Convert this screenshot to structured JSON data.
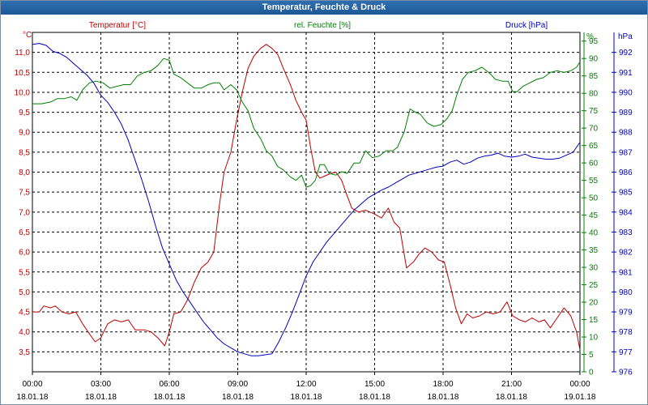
{
  "window_title": "Temperatur, Feuchte & Druck",
  "colors": {
    "temperature": "#c00000",
    "humidity": "#008000",
    "pressure": "#0000c0",
    "grid": "#000000",
    "titlebar": "#1f5f9f"
  },
  "chart_data": {
    "type": "line",
    "title": "Temperatur, Feuchte & Druck",
    "x_ticks": [
      {
        "hours": 0,
        "time": "00:00",
        "date": "18.01.18"
      },
      {
        "hours": 3,
        "time": "03:00",
        "date": "18.01.18"
      },
      {
        "hours": 6,
        "time": "06:00",
        "date": "18.01.18"
      },
      {
        "hours": 9,
        "time": "09:00",
        "date": "18.01.18"
      },
      {
        "hours": 12,
        "time": "12:00",
        "date": "18.01.18"
      },
      {
        "hours": 15,
        "time": "15:00",
        "date": "18.01.18"
      },
      {
        "hours": 18,
        "time": "18:00",
        "date": "18.01.18"
      },
      {
        "hours": 21,
        "time": "21:00",
        "date": "18.01.18"
      },
      {
        "hours": 24,
        "time": "00:00",
        "date": "19.01.18"
      }
    ],
    "xlim": [
      0,
      24
    ],
    "axes": {
      "temperature": {
        "unit_label": "°C",
        "header": "Temperatur [°C]",
        "ylim": [
          3.0,
          11.5
        ],
        "ticks": [
          "3,5",
          "4,0",
          "4,5",
          "5,0",
          "5,5",
          "6,0",
          "6,5",
          "7,0",
          "7,5",
          "8,0",
          "8,5",
          "9,0",
          "9,5",
          "10,0",
          "10,5",
          "11,0"
        ]
      },
      "humidity": {
        "unit_label": "%",
        "header": "rel. Feuchte [%]",
        "ylim": [
          0,
          97.5
        ],
        "ticks": [
          "0",
          "5",
          "10",
          "15",
          "20",
          "25",
          "30",
          "35",
          "40",
          "45",
          "50",
          "55",
          "60",
          "65",
          "70",
          "75",
          "80",
          "85",
          "90",
          "95"
        ]
      },
      "pressure": {
        "unit_label": "hPa",
        "header": "Druck [hPa]",
        "ylim": [
          976,
          993
        ],
        "ticks": [
          "976",
          "977",
          "978",
          "979",
          "980",
          "981",
          "982",
          "983",
          "984",
          "985",
          "986",
          "987",
          "988",
          "989",
          "990",
          "991",
          "992"
        ]
      }
    },
    "series": [
      {
        "name": "Temperatur",
        "unit": "°C",
        "points": [
          [
            0,
            4.5
          ],
          [
            0.3,
            4.5
          ],
          [
            0.5,
            4.65
          ],
          [
            0.8,
            4.6
          ],
          [
            1.0,
            4.65
          ],
          [
            1.3,
            4.5
          ],
          [
            1.6,
            4.45
          ],
          [
            1.9,
            4.5
          ],
          [
            2.2,
            4.2
          ],
          [
            2.5,
            3.95
          ],
          [
            2.75,
            3.75
          ],
          [
            3.0,
            3.85
          ],
          [
            3.3,
            4.2
          ],
          [
            3.6,
            4.3
          ],
          [
            3.9,
            4.25
          ],
          [
            4.2,
            4.3
          ],
          [
            4.5,
            4.05
          ],
          [
            4.9,
            4.05
          ],
          [
            5.2,
            4.0
          ],
          [
            5.5,
            3.85
          ],
          [
            5.8,
            3.65
          ],
          [
            6.0,
            4.0
          ],
          [
            6.2,
            4.45
          ],
          [
            6.5,
            4.5
          ],
          [
            6.8,
            4.8
          ],
          [
            7.1,
            5.25
          ],
          [
            7.4,
            5.6
          ],
          [
            7.7,
            5.75
          ],
          [
            7.95,
            6.0
          ],
          [
            8.2,
            7.2
          ],
          [
            8.4,
            8.0
          ],
          [
            8.7,
            8.5
          ],
          [
            8.95,
            9.3
          ],
          [
            9.2,
            10.0
          ],
          [
            9.45,
            10.6
          ],
          [
            9.7,
            10.9
          ],
          [
            10.0,
            11.1
          ],
          [
            10.25,
            11.2
          ],
          [
            10.5,
            11.1
          ],
          [
            10.75,
            10.95
          ],
          [
            11.0,
            10.6
          ],
          [
            11.3,
            10.2
          ],
          [
            11.55,
            9.8
          ],
          [
            11.8,
            9.5
          ],
          [
            12.0,
            9.3
          ],
          [
            12.2,
            8.6
          ],
          [
            12.4,
            8.0
          ],
          [
            12.6,
            7.85
          ],
          [
            12.8,
            7.9
          ],
          [
            13.0,
            7.95
          ],
          [
            13.3,
            8.0
          ],
          [
            13.55,
            7.8
          ],
          [
            13.8,
            7.4
          ],
          [
            14.0,
            7.1
          ],
          [
            14.3,
            7.0
          ],
          [
            14.6,
            7.05
          ],
          [
            15.0,
            6.95
          ],
          [
            15.3,
            6.85
          ],
          [
            15.6,
            7.1
          ],
          [
            15.85,
            6.75
          ],
          [
            16.1,
            6.6
          ],
          [
            16.4,
            5.6
          ],
          [
            16.7,
            5.75
          ],
          [
            16.95,
            5.95
          ],
          [
            17.2,
            6.1
          ],
          [
            17.5,
            6.0
          ],
          [
            17.8,
            5.8
          ],
          [
            18.05,
            5.75
          ],
          [
            18.3,
            5.2
          ],
          [
            18.55,
            4.6
          ],
          [
            18.8,
            4.2
          ],
          [
            19.05,
            4.45
          ],
          [
            19.3,
            4.35
          ],
          [
            19.6,
            4.4
          ],
          [
            19.9,
            4.5
          ],
          [
            20.2,
            4.45
          ],
          [
            20.5,
            4.5
          ],
          [
            20.8,
            4.75
          ],
          [
            21.05,
            4.4
          ],
          [
            21.35,
            4.3
          ],
          [
            21.6,
            4.25
          ],
          [
            21.9,
            4.35
          ],
          [
            22.2,
            4.25
          ],
          [
            22.45,
            4.3
          ],
          [
            22.7,
            4.1
          ],
          [
            23.0,
            4.35
          ],
          [
            23.3,
            4.6
          ],
          [
            23.6,
            4.4
          ],
          [
            23.85,
            4.0
          ],
          [
            24.0,
            3.55
          ]
        ]
      },
      {
        "name": "rel. Feuchte",
        "unit": "%",
        "points": [
          [
            0,
            77
          ],
          [
            0.4,
            77
          ],
          [
            0.8,
            77.5
          ],
          [
            1.1,
            78.5
          ],
          [
            1.4,
            78.5
          ],
          [
            1.7,
            79
          ],
          [
            1.95,
            78
          ],
          [
            2.2,
            81
          ],
          [
            2.5,
            83
          ],
          [
            2.8,
            83.5
          ],
          [
            3.1,
            83
          ],
          [
            3.4,
            81.5
          ],
          [
            3.7,
            82
          ],
          [
            4.0,
            82.5
          ],
          [
            4.3,
            82.5
          ],
          [
            4.6,
            85
          ],
          [
            4.9,
            86
          ],
          [
            5.2,
            86.5
          ],
          [
            5.5,
            88
          ],
          [
            5.75,
            90
          ],
          [
            6.0,
            89.5
          ],
          [
            6.2,
            85.5
          ],
          [
            6.5,
            84.5
          ],
          [
            6.8,
            83
          ],
          [
            7.1,
            81.5
          ],
          [
            7.4,
            81.5
          ],
          [
            7.7,
            82.5
          ],
          [
            7.95,
            83
          ],
          [
            8.2,
            83
          ],
          [
            8.4,
            81
          ],
          [
            8.7,
            82.5
          ],
          [
            8.95,
            81
          ],
          [
            9.2,
            77.5
          ],
          [
            9.45,
            75
          ],
          [
            9.7,
            70
          ],
          [
            10.0,
            67
          ],
          [
            10.25,
            63.5
          ],
          [
            10.5,
            62
          ],
          [
            10.75,
            59
          ],
          [
            11.0,
            58
          ],
          [
            11.3,
            56
          ],
          [
            11.55,
            55
          ],
          [
            11.8,
            56.5
          ],
          [
            12.0,
            53
          ],
          [
            12.2,
            53.5
          ],
          [
            12.4,
            55
          ],
          [
            12.6,
            59.5
          ],
          [
            12.8,
            59.5
          ],
          [
            13.0,
            57
          ],
          [
            13.3,
            56.5
          ],
          [
            13.55,
            57.5
          ],
          [
            13.8,
            57
          ],
          [
            14.1,
            60
          ],
          [
            14.35,
            60
          ],
          [
            14.6,
            63.5
          ],
          [
            14.9,
            61.5
          ],
          [
            15.2,
            62
          ],
          [
            15.5,
            63.5
          ],
          [
            15.8,
            63.5
          ],
          [
            16.0,
            64.5
          ],
          [
            16.3,
            69
          ],
          [
            16.55,
            75.5
          ],
          [
            16.8,
            74.5
          ],
          [
            17.0,
            74
          ],
          [
            17.3,
            71.5
          ],
          [
            17.6,
            70.5
          ],
          [
            17.9,
            71
          ],
          [
            18.15,
            72.5
          ],
          [
            18.4,
            75
          ],
          [
            18.6,
            79.5
          ],
          [
            18.85,
            84
          ],
          [
            19.1,
            86
          ],
          [
            19.4,
            86.5
          ],
          [
            19.7,
            87.5
          ],
          [
            20.0,
            86
          ],
          [
            20.3,
            84
          ],
          [
            20.6,
            83.5
          ],
          [
            20.85,
            83.5
          ],
          [
            21.05,
            80.5
          ],
          [
            21.25,
            80.5
          ],
          [
            21.5,
            82
          ],
          [
            21.8,
            83
          ],
          [
            22.1,
            84
          ],
          [
            22.4,
            84.5
          ],
          [
            22.7,
            86
          ],
          [
            23.0,
            86.5
          ],
          [
            23.3,
            86
          ],
          [
            23.6,
            86.5
          ],
          [
            23.85,
            87.5
          ],
          [
            24.0,
            89
          ]
        ]
      },
      {
        "name": "Druck",
        "unit": "hPa",
        "points": [
          [
            0,
            992.4
          ],
          [
            0.3,
            992.45
          ],
          [
            0.6,
            992.35
          ],
          [
            0.9,
            992.05
          ],
          [
            1.2,
            991.95
          ],
          [
            1.5,
            991.75
          ],
          [
            1.8,
            991.45
          ],
          [
            2.1,
            991.15
          ],
          [
            2.4,
            990.85
          ],
          [
            2.7,
            990.45
          ],
          [
            3.0,
            989.85
          ],
          [
            3.3,
            989.5
          ],
          [
            3.6,
            989.0
          ],
          [
            3.9,
            988.4
          ],
          [
            4.2,
            987.6
          ],
          [
            4.5,
            986.6
          ],
          [
            4.8,
            985.6
          ],
          [
            5.1,
            984.5
          ],
          [
            5.4,
            983.3
          ],
          [
            5.7,
            982.2
          ],
          [
            6.0,
            981.4
          ],
          [
            6.3,
            980.6
          ],
          [
            6.6,
            980.0
          ],
          [
            6.9,
            979.5
          ],
          [
            7.2,
            979.0
          ],
          [
            7.5,
            978.5
          ],
          [
            7.8,
            978.1
          ],
          [
            8.1,
            977.7
          ],
          [
            8.4,
            977.4
          ],
          [
            8.7,
            977.2
          ],
          [
            9.0,
            977.0
          ],
          [
            9.3,
            976.9
          ],
          [
            9.6,
            976.8
          ],
          [
            9.9,
            976.8
          ],
          [
            10.2,
            976.85
          ],
          [
            10.5,
            976.9
          ],
          [
            10.8,
            977.5
          ],
          [
            11.1,
            978.2
          ],
          [
            11.4,
            979.0
          ],
          [
            11.7,
            979.9
          ],
          [
            12.0,
            980.8
          ],
          [
            12.3,
            981.5
          ],
          [
            12.6,
            982.0
          ],
          [
            12.9,
            982.5
          ],
          [
            13.2,
            982.9
          ],
          [
            13.5,
            983.3
          ],
          [
            13.8,
            983.7
          ],
          [
            14.1,
            984.1
          ],
          [
            14.4,
            984.4
          ],
          [
            14.7,
            984.7
          ],
          [
            15.0,
            984.9
          ],
          [
            15.3,
            985.1
          ],
          [
            15.6,
            985.25
          ],
          [
            15.9,
            985.45
          ],
          [
            16.2,
            985.65
          ],
          [
            16.5,
            985.85
          ],
          [
            16.8,
            985.95
          ],
          [
            17.1,
            986.05
          ],
          [
            17.4,
            986.15
          ],
          [
            17.7,
            986.25
          ],
          [
            18.0,
            986.3
          ],
          [
            18.3,
            986.5
          ],
          [
            18.6,
            986.6
          ],
          [
            18.9,
            986.4
          ],
          [
            19.2,
            986.5
          ],
          [
            19.5,
            986.7
          ],
          [
            19.8,
            986.8
          ],
          [
            20.1,
            986.85
          ],
          [
            20.4,
            986.95
          ],
          [
            20.7,
            986.8
          ],
          [
            21.0,
            986.75
          ],
          [
            21.3,
            986.8
          ],
          [
            21.6,
            986.9
          ],
          [
            21.9,
            986.75
          ],
          [
            22.2,
            986.7
          ],
          [
            22.5,
            986.65
          ],
          [
            22.8,
            986.65
          ],
          [
            23.1,
            986.7
          ],
          [
            23.4,
            986.85
          ],
          [
            23.7,
            987.0
          ],
          [
            24.0,
            987.5
          ]
        ]
      }
    ]
  }
}
